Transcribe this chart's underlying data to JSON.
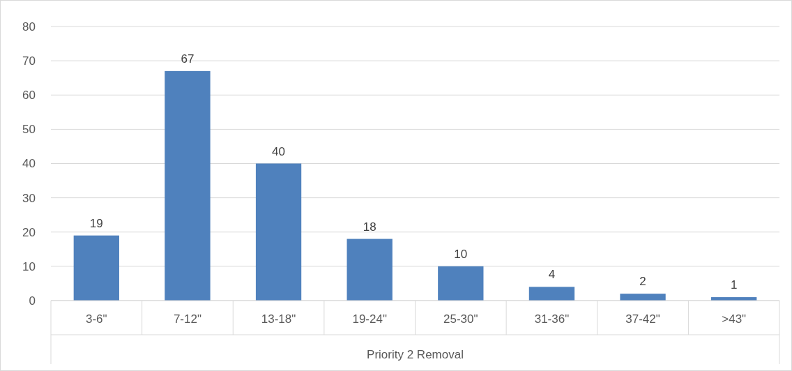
{
  "chart_data": {
    "type": "bar",
    "xlabel": "Priority 2 Removal",
    "categories": [
      "3-6\"",
      "7-12\"",
      "13-18\"",
      "19-24\"",
      "25-30\"",
      "31-36\"",
      "37-42\"",
      ">43\""
    ],
    "values": [
      19,
      67,
      40,
      18,
      10,
      4,
      2,
      1
    ],
    "color": "#4f81bd",
    "ylim": [
      0,
      80
    ],
    "yticks": [
      0,
      10,
      20,
      30,
      40,
      50,
      60,
      70,
      80
    ],
    "grid": "y",
    "data_labels": true
  }
}
